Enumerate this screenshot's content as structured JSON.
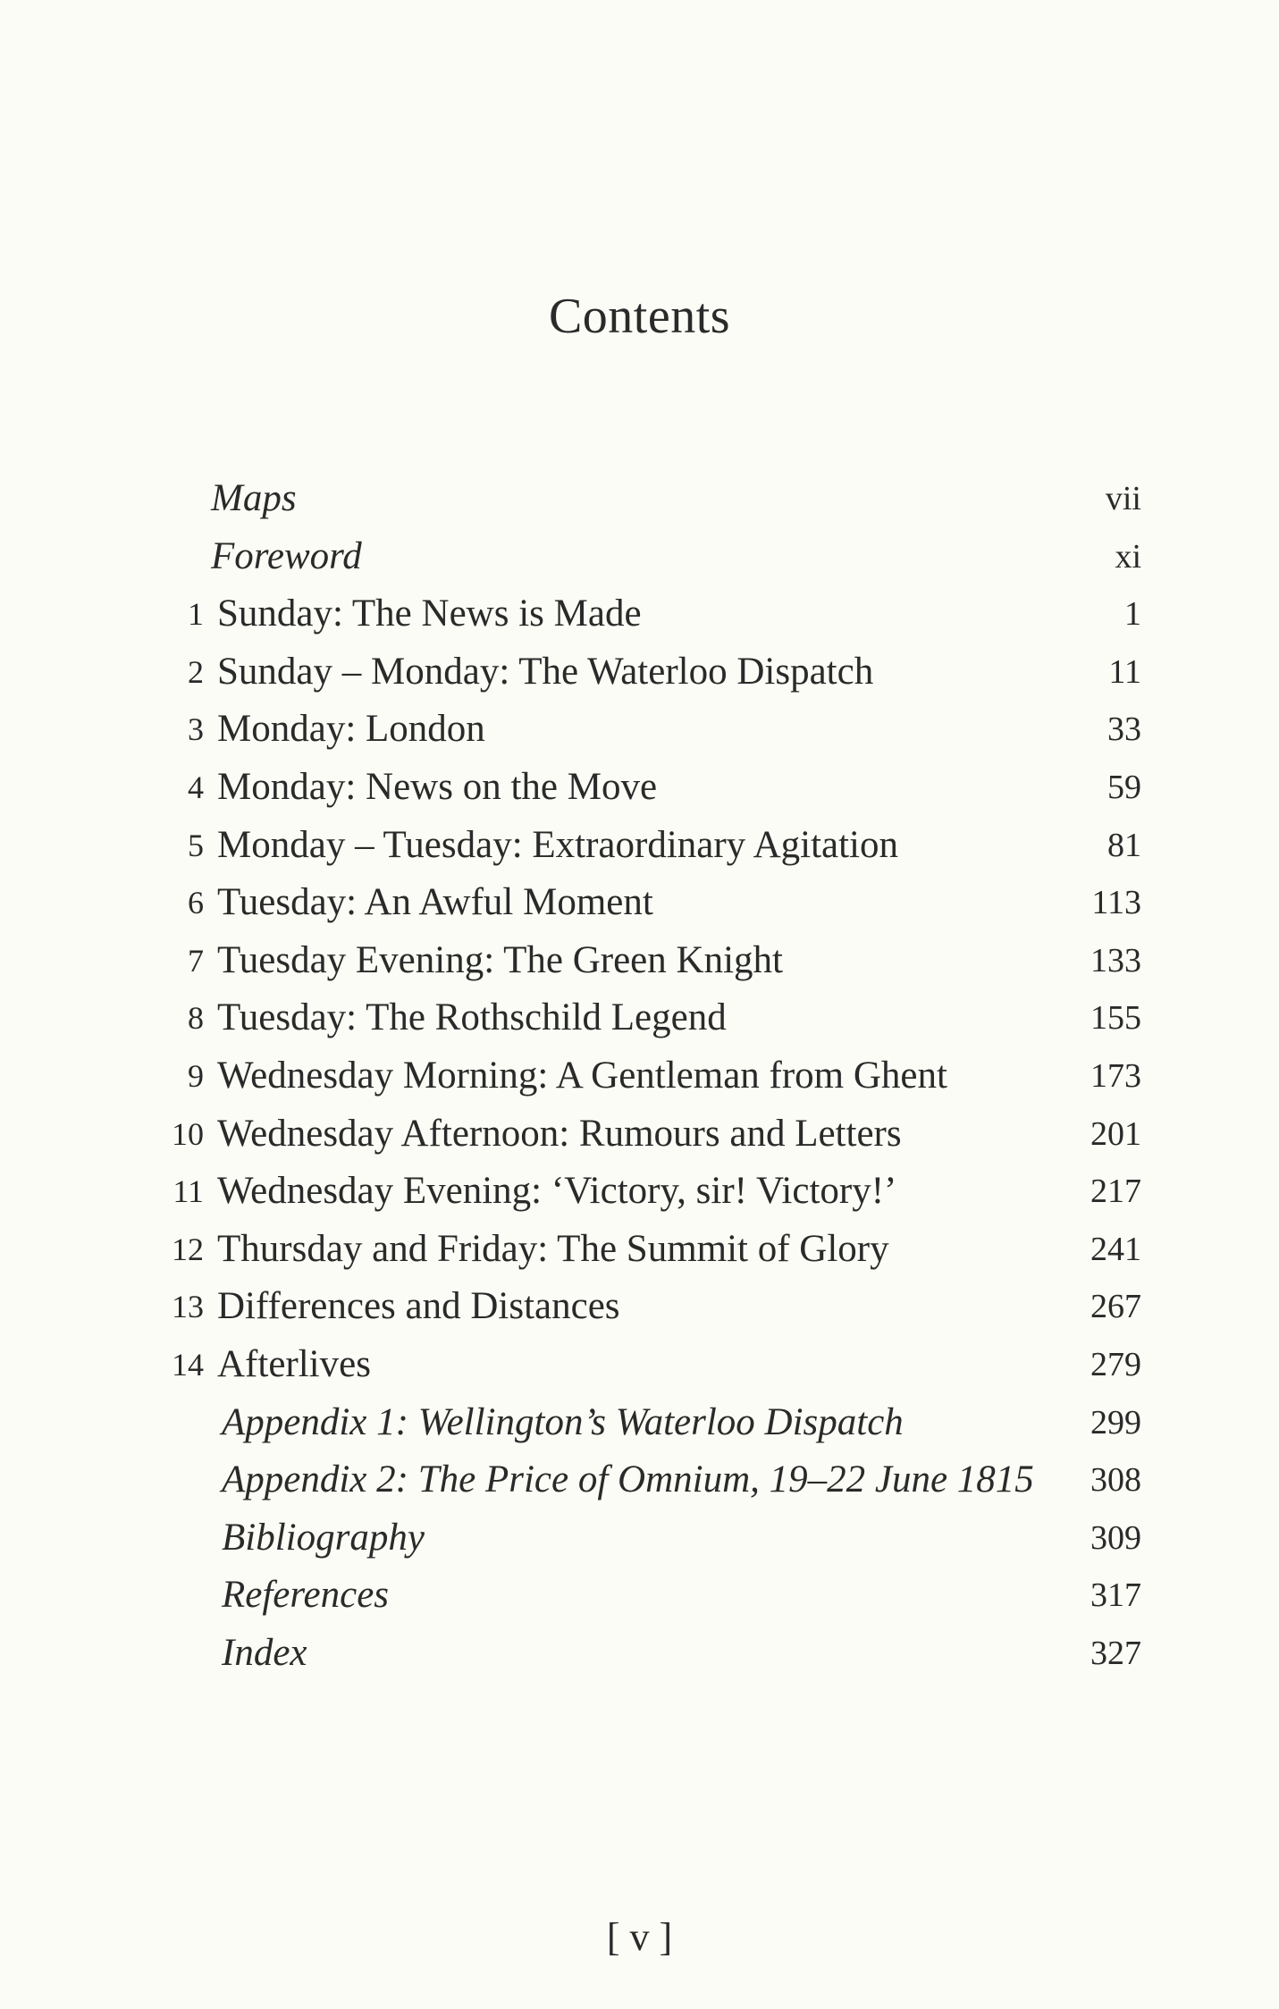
{
  "title": "Contents",
  "entries": [
    {
      "num": "",
      "title": "Maps",
      "page": "vii",
      "kind": "front"
    },
    {
      "num": "",
      "title": "Foreword",
      "page": "xi",
      "kind": "front"
    },
    {
      "num": "1",
      "title": "Sunday: The News is Made",
      "page": "1",
      "kind": "chapter"
    },
    {
      "num": "2",
      "title": "Sunday – Monday: The Waterloo Dispatch",
      "page": "11",
      "kind": "chapter"
    },
    {
      "num": "3",
      "title": "Monday: London",
      "page": "33",
      "kind": "chapter"
    },
    {
      "num": "4",
      "title": "Monday: News on the Move",
      "page": "59",
      "kind": "chapter"
    },
    {
      "num": "5",
      "title": "Monday – Tuesday: Extraordinary Agitation",
      "page": "81",
      "kind": "chapter"
    },
    {
      "num": "6",
      "title": "Tuesday: An Awful Moment",
      "page": "113",
      "kind": "chapter"
    },
    {
      "num": "7",
      "title": "Tuesday Evening: The Green Knight",
      "page": "133",
      "kind": "chapter"
    },
    {
      "num": "8",
      "title": "Tuesday: The Rothschild Legend",
      "page": "155",
      "kind": "chapter"
    },
    {
      "num": "9",
      "title": "Wednesday Morning: A Gentleman from Ghent",
      "page": "173",
      "kind": "chapter"
    },
    {
      "num": "10",
      "title": "Wednesday Afternoon: Rumours and Letters",
      "page": "201",
      "kind": "chapter"
    },
    {
      "num": "11",
      "title": "Wednesday Evening: ‘Victory, sir! Victory!’",
      "page": "217",
      "kind": "chapter"
    },
    {
      "num": "12",
      "title": "Thursday and Friday: The Summit of Glory",
      "page": "241",
      "kind": "chapter"
    },
    {
      "num": "13",
      "title": "Differences and Distances",
      "page": "267",
      "kind": "chapter"
    },
    {
      "num": "14",
      "title": "Afterlives",
      "page": "279",
      "kind": "chapter"
    },
    {
      "num": "",
      "title": "Appendix 1: Wellington’s Waterloo Dispatch",
      "page": "299",
      "kind": "back"
    },
    {
      "num": "",
      "title": "Appendix 2: The Price of Omnium, 19–22 June 1815",
      "page": "308",
      "kind": "back"
    },
    {
      "num": "",
      "title": "Bibliography",
      "page": "309",
      "kind": "back"
    },
    {
      "num": "",
      "title": "References",
      "page": "317",
      "kind": "back"
    },
    {
      "num": "",
      "title": "Index",
      "page": "327",
      "kind": "back"
    }
  ],
  "folio": "[ v ]"
}
